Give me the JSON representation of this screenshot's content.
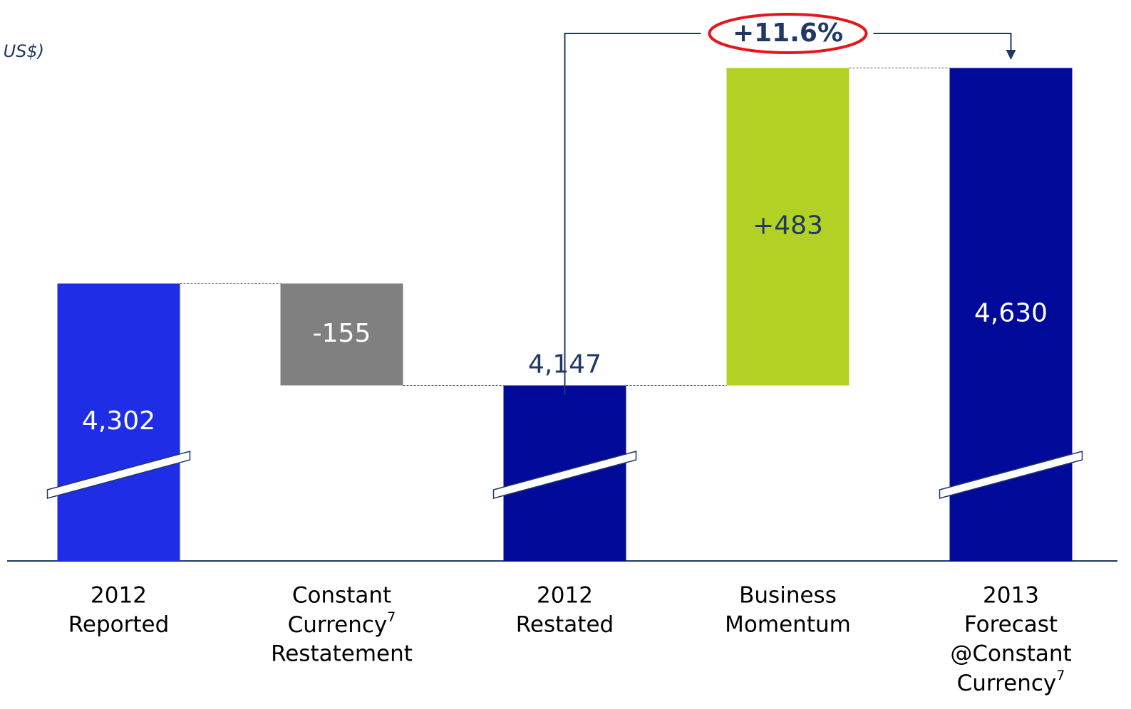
{
  "chart_data": {
    "type": "waterfall",
    "unit_label": "US$)",
    "categories": [
      [
        "2012",
        "Reported"
      ],
      [
        "Constant",
        {
          "text": "Currency",
          "sup": "7"
        },
        "Restatement"
      ],
      [
        "2012",
        "Restated"
      ],
      [
        "Business",
        "Momentum"
      ],
      [
        "2013",
        "Forecast",
        "@Constant",
        {
          "text": "Currency",
          "sup": "7"
        }
      ]
    ],
    "values": [
      4302,
      -155,
      4147,
      483,
      4630
    ],
    "value_labels": [
      "4,302",
      "-155",
      "4,147",
      "+483",
      "4,630"
    ],
    "kinds": [
      "total",
      "delta",
      "total",
      "delta",
      "total"
    ],
    "colors": [
      "#1f2ee6",
      "#808080",
      "#020a9a",
      "#b2d124",
      "#020a9a"
    ],
    "label_positions": [
      "inside",
      "inside",
      "above",
      "inside",
      "inside"
    ],
    "label_colors": [
      "#ffffff",
      "#ffffff",
      "#1f3864",
      "#1f3864",
      "#ffffff"
    ],
    "ylim": [
      3880,
      4650
    ],
    "axis_break": true,
    "annotation": "+11.6%"
  }
}
